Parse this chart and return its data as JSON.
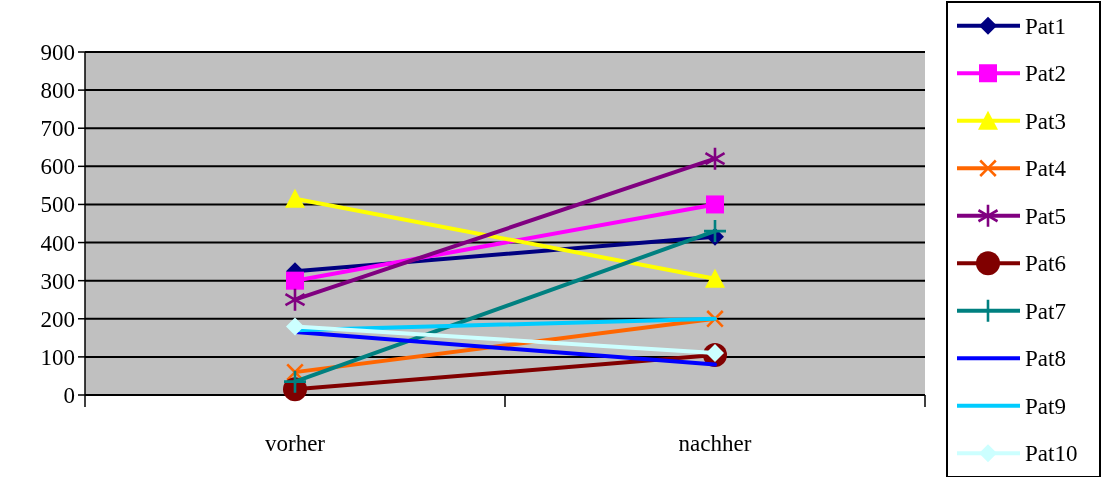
{
  "chart_data": {
    "type": "line",
    "categories": [
      "vorher",
      "nachher"
    ],
    "ylim": [
      0,
      900
    ],
    "yticks": [
      0,
      100,
      200,
      300,
      400,
      500,
      600,
      700,
      800,
      900
    ],
    "grid": "y",
    "legend": "right",
    "series": [
      {
        "name": "Pat1",
        "color": "#000080",
        "marker": "diamond",
        "values": [
          325,
          415
        ]
      },
      {
        "name": "Pat2",
        "color": "#ff00ff",
        "marker": "square",
        "values": [
          300,
          500
        ]
      },
      {
        "name": "Pat3",
        "color": "#ffff00",
        "marker": "triangle",
        "values": [
          515,
          305
        ]
      },
      {
        "name": "Pat4",
        "color": "#ff6600",
        "marker": "x",
        "values": [
          60,
          200
        ]
      },
      {
        "name": "Pat5",
        "color": "#800080",
        "marker": "star",
        "values": [
          250,
          620
        ]
      },
      {
        "name": "Pat6",
        "color": "#800000",
        "marker": "circle",
        "values": [
          15,
          105
        ]
      },
      {
        "name": "Pat7",
        "color": "#008080",
        "marker": "cross",
        "values": [
          35,
          430
        ]
      },
      {
        "name": "Pat8",
        "color": "#0000ff",
        "marker": "none",
        "values": [
          165,
          80
        ]
      },
      {
        "name": "Pat9",
        "color": "#00ccff",
        "marker": "none",
        "values": [
          170,
          200
        ]
      },
      {
        "name": "Pat10",
        "color": "#ccffff",
        "marker": "diamond",
        "values": [
          180,
          110
        ]
      }
    ]
  }
}
